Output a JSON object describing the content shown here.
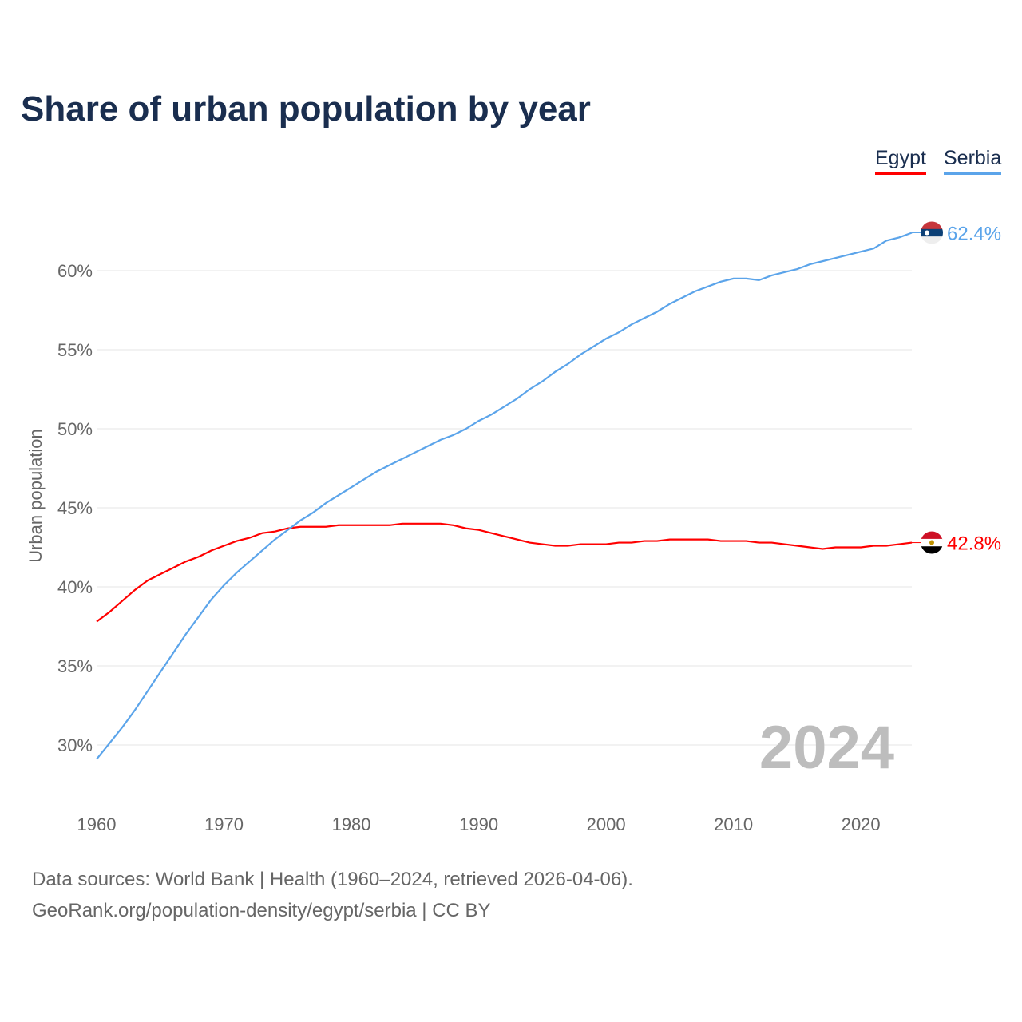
{
  "chart_data": {
    "type": "line",
    "title": "Share of urban population by year",
    "xlabel": "",
    "ylabel": "Urban population",
    "xlim": [
      1960,
      2024
    ],
    "ylim": [
      27,
      63
    ],
    "yticks": [
      30,
      35,
      40,
      45,
      50,
      55,
      60
    ],
    "ytick_labels": [
      "30%",
      "35%",
      "40%",
      "45%",
      "50%",
      "55%",
      "60%"
    ],
    "xticks": [
      1960,
      1970,
      1980,
      1990,
      2000,
      2010,
      2020
    ],
    "xtick_labels": [
      "1960",
      "1970",
      "1980",
      "1990",
      "2000",
      "2010",
      "2020"
    ],
    "grid": true,
    "legend_position": "top-right",
    "year_watermark": "2024",
    "x": [
      1960,
      1961,
      1962,
      1963,
      1964,
      1965,
      1966,
      1967,
      1968,
      1969,
      1970,
      1971,
      1972,
      1973,
      1974,
      1975,
      1976,
      1977,
      1978,
      1979,
      1980,
      1981,
      1982,
      1983,
      1984,
      1985,
      1986,
      1987,
      1988,
      1989,
      1990,
      1991,
      1992,
      1993,
      1994,
      1995,
      1996,
      1997,
      1998,
      1999,
      2000,
      2001,
      2002,
      2003,
      2004,
      2005,
      2006,
      2007,
      2008,
      2009,
      2010,
      2011,
      2012,
      2013,
      2014,
      2015,
      2016,
      2017,
      2018,
      2019,
      2020,
      2021,
      2022,
      2023,
      2024
    ],
    "series": [
      {
        "name": "Egypt",
        "color": "#ff0000",
        "end_label": "42.8%",
        "flag": "egypt-flag",
        "values": [
          37.8,
          38.4,
          39.1,
          39.8,
          40.4,
          40.8,
          41.2,
          41.6,
          41.9,
          42.3,
          42.6,
          42.9,
          43.1,
          43.4,
          43.5,
          43.7,
          43.8,
          43.8,
          43.8,
          43.9,
          43.9,
          43.9,
          43.9,
          43.9,
          44.0,
          44.0,
          44.0,
          44.0,
          43.9,
          43.7,
          43.6,
          43.4,
          43.2,
          43.0,
          42.8,
          42.7,
          42.6,
          42.6,
          42.7,
          42.7,
          42.7,
          42.8,
          42.8,
          42.9,
          42.9,
          43.0,
          43.0,
          43.0,
          43.0,
          42.9,
          42.9,
          42.9,
          42.8,
          42.8,
          42.7,
          42.6,
          42.5,
          42.4,
          42.5,
          42.5,
          42.5,
          42.6,
          42.6,
          42.7,
          42.8
        ]
      },
      {
        "name": "Serbia",
        "color": "#5ba4ea",
        "end_label": "62.4%",
        "flag": "serbia-flag",
        "values": [
          29.1,
          30.1,
          31.1,
          32.2,
          33.4,
          34.6,
          35.8,
          37.0,
          38.1,
          39.2,
          40.1,
          40.9,
          41.6,
          42.3,
          43.0,
          43.6,
          44.2,
          44.7,
          45.3,
          45.8,
          46.3,
          46.8,
          47.3,
          47.7,
          48.1,
          48.5,
          48.9,
          49.3,
          49.6,
          50.0,
          50.5,
          50.9,
          51.4,
          51.9,
          52.5,
          53.0,
          53.6,
          54.1,
          54.7,
          55.2,
          55.7,
          56.1,
          56.6,
          57.0,
          57.4,
          57.9,
          58.3,
          58.7,
          59.0,
          59.3,
          59.5,
          59.5,
          59.4,
          59.7,
          59.9,
          60.1,
          60.4,
          60.6,
          60.8,
          61.0,
          61.2,
          61.4,
          61.9,
          62.1,
          62.4
        ]
      }
    ]
  },
  "footer": {
    "line1": "Data sources: World Bank | Health (1960–2024, retrieved 2026-04-06).",
    "line2": "GeoRank.org/population-density/egypt/serbia | CC BY"
  }
}
